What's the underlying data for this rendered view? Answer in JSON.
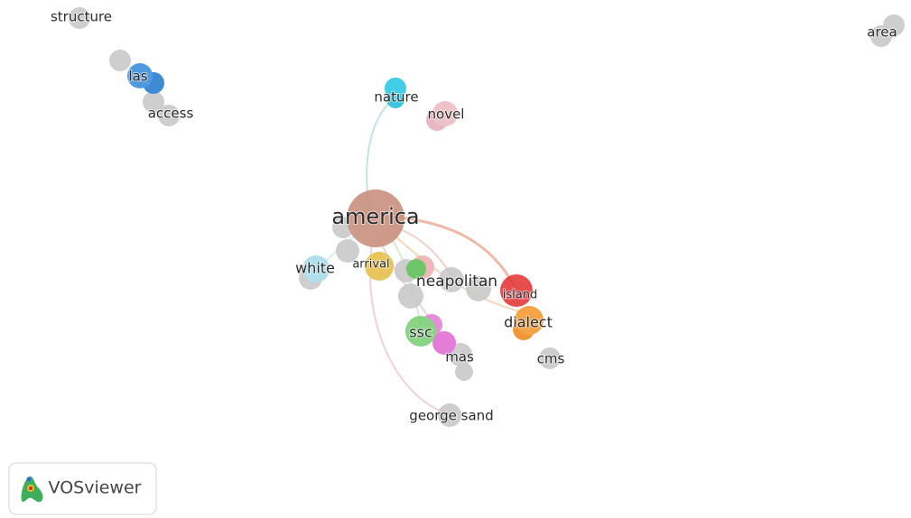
{
  "nodes": [
    {
      "label": "structure"
    },
    {
      "label": "las"
    },
    {
      "label": "access"
    },
    {
      "label": "nature"
    },
    {
      "label": "novel"
    },
    {
      "label": "area"
    },
    {
      "label": "america"
    },
    {
      "label": "white"
    },
    {
      "label": "arrival"
    },
    {
      "label": "neapolitan"
    },
    {
      "label": "island"
    },
    {
      "label": "dialect"
    },
    {
      "label": "ssc"
    },
    {
      "label": "mas"
    },
    {
      "label": "cms"
    },
    {
      "label": "george sand"
    }
  ],
  "logo": {
    "text": "VOSviewer"
  }
}
